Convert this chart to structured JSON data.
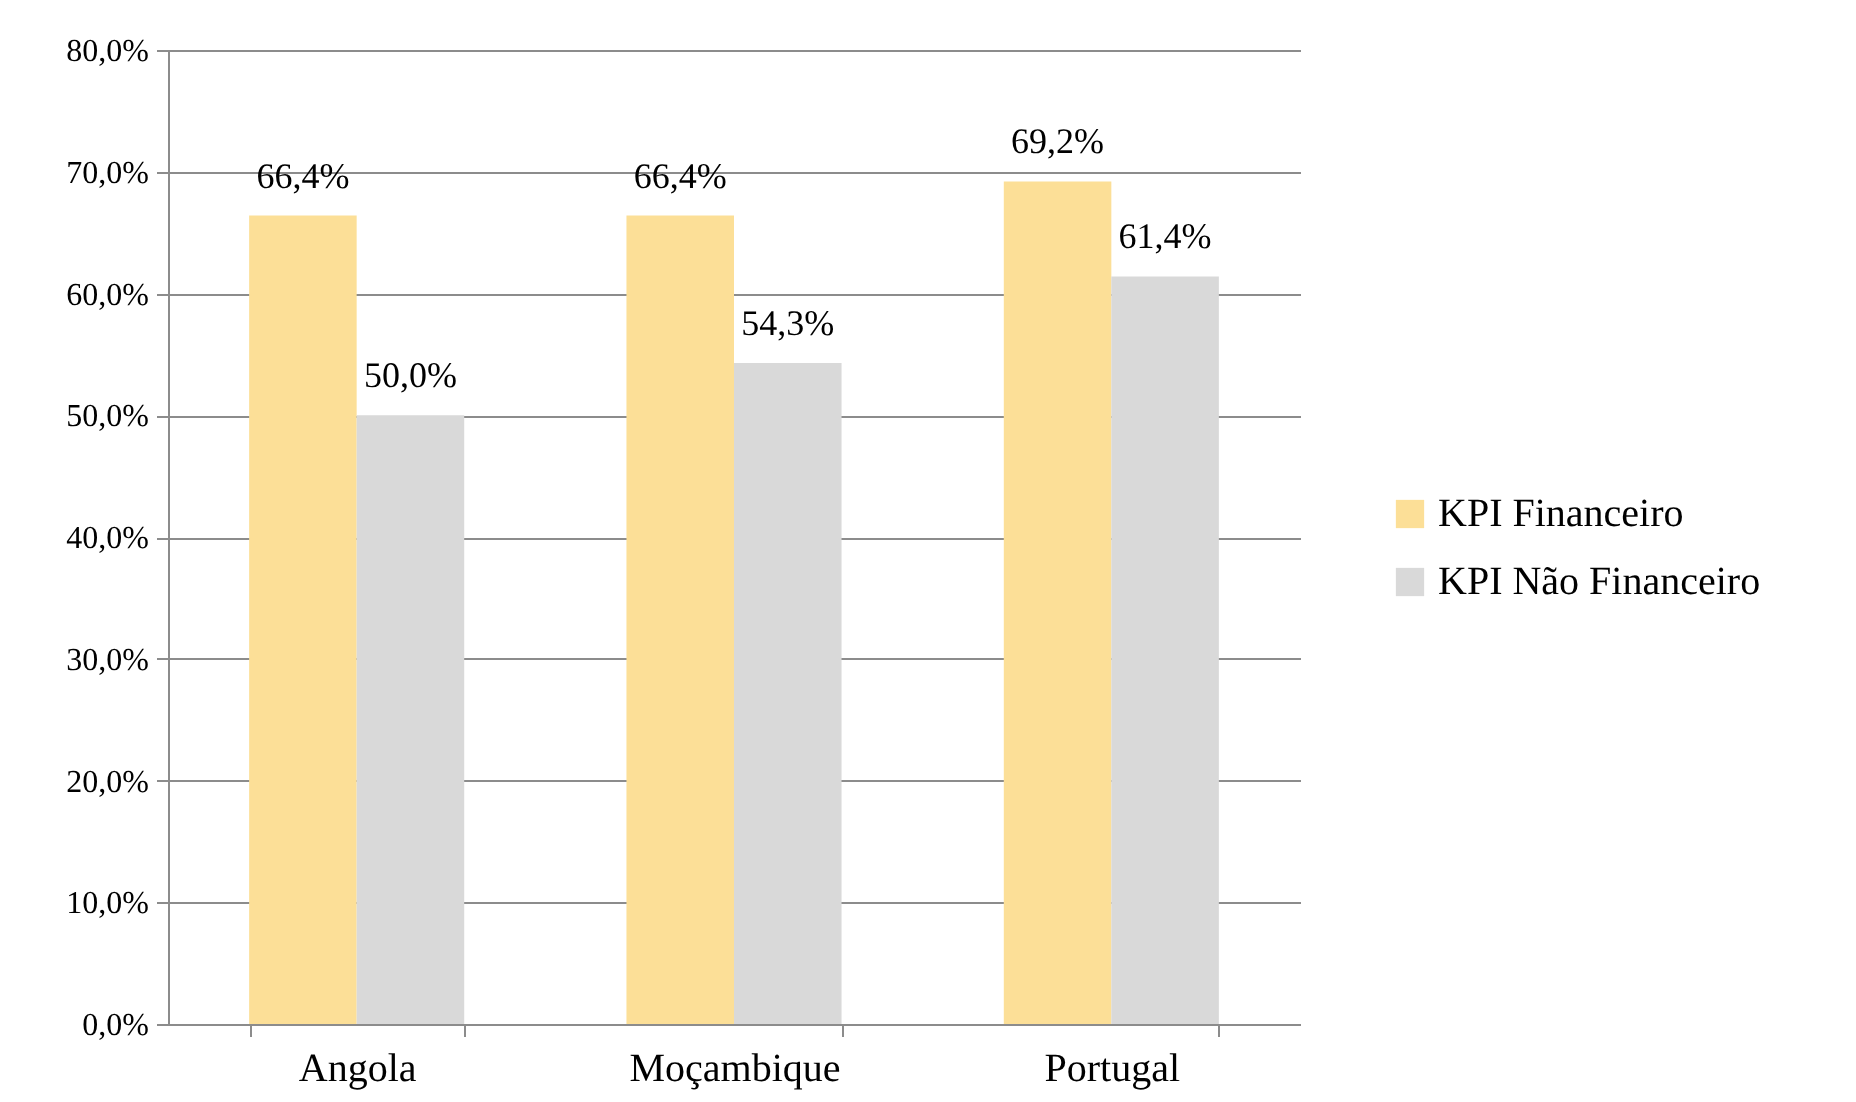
{
  "chart_data": {
    "type": "bar",
    "categories": [
      "Angola",
      "Moçambique",
      "Portugal"
    ],
    "series": [
      {
        "name": "KPI Financeiro",
        "color": "#fcdf97",
        "values": [
          66.4,
          66.4,
          69.2
        ],
        "value_labels": [
          "66,4%",
          "66,4%",
          "69,2%"
        ]
      },
      {
        "name": "KPI Não Financeiro",
        "color": "#d9d9d9",
        "values": [
          50.0,
          54.3,
          61.4
        ],
        "value_labels": [
          "50,0%",
          "54,3%",
          "61,4%"
        ]
      }
    ],
    "ylim": [
      0,
      80
    ],
    "yticks": [
      {
        "value": 0,
        "label": "0,0%"
      },
      {
        "value": 10,
        "label": "10,0%"
      },
      {
        "value": 20,
        "label": "20,0%"
      },
      {
        "value": 30,
        "label": "30,0%"
      },
      {
        "value": 40,
        "label": "40,0%"
      },
      {
        "value": 50,
        "label": "50,0%"
      },
      {
        "value": 60,
        "label": "60,0%"
      },
      {
        "value": 70,
        "label": "70,0%"
      },
      {
        "value": 80,
        "label": "80,0%"
      }
    ],
    "grid": "y",
    "legend": "right"
  }
}
